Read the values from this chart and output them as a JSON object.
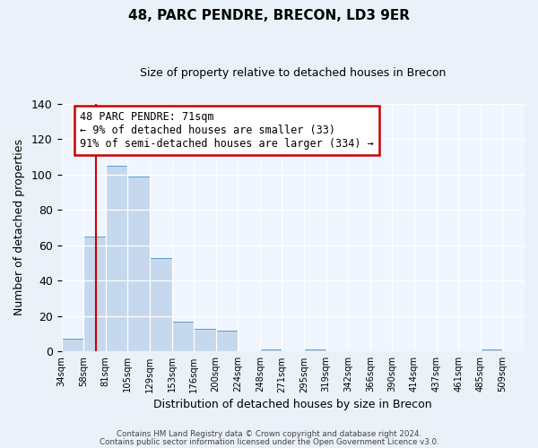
{
  "title": "48, PARC PENDRE, BRECON, LD3 9ER",
  "subtitle": "Size of property relative to detached houses in Brecon",
  "xlabel": "Distribution of detached houses by size in Brecon",
  "ylabel": "Number of detached properties",
  "bin_labels": [
    "34sqm",
    "58sqm",
    "81sqm",
    "105sqm",
    "129sqm",
    "153sqm",
    "176sqm",
    "200sqm",
    "224sqm",
    "248sqm",
    "271sqm",
    "295sqm",
    "319sqm",
    "342sqm",
    "366sqm",
    "390sqm",
    "414sqm",
    "437sqm",
    "461sqm",
    "485sqm",
    "509sqm"
  ],
  "bar_values": [
    7,
    65,
    105,
    99,
    53,
    17,
    13,
    12,
    0,
    1,
    0,
    1,
    0,
    0,
    0,
    0,
    0,
    0,
    0,
    1,
    0
  ],
  "bar_color": "#c5d8ed",
  "bar_edge_color": "#5b9bd5",
  "vline_color": "#cc0000",
  "annotation_title": "48 PARC PENDRE: 71sqm",
  "annotation_line1": "← 9% of detached houses are smaller (33)",
  "annotation_line2": "91% of semi-detached houses are larger (334) →",
  "annotation_box_color": "#ffffff",
  "annotation_box_edge": "#cc0000",
  "ylim": [
    0,
    140
  ],
  "yticks": [
    0,
    20,
    40,
    60,
    80,
    100,
    120,
    140
  ],
  "footer1": "Contains HM Land Registry data © Crown copyright and database right 2024.",
  "footer2": "Contains public sector information licensed under the Open Government Licence v3.0.",
  "bg_color": "#eaf1f8",
  "plot_bg_color": "#f0f6ff"
}
